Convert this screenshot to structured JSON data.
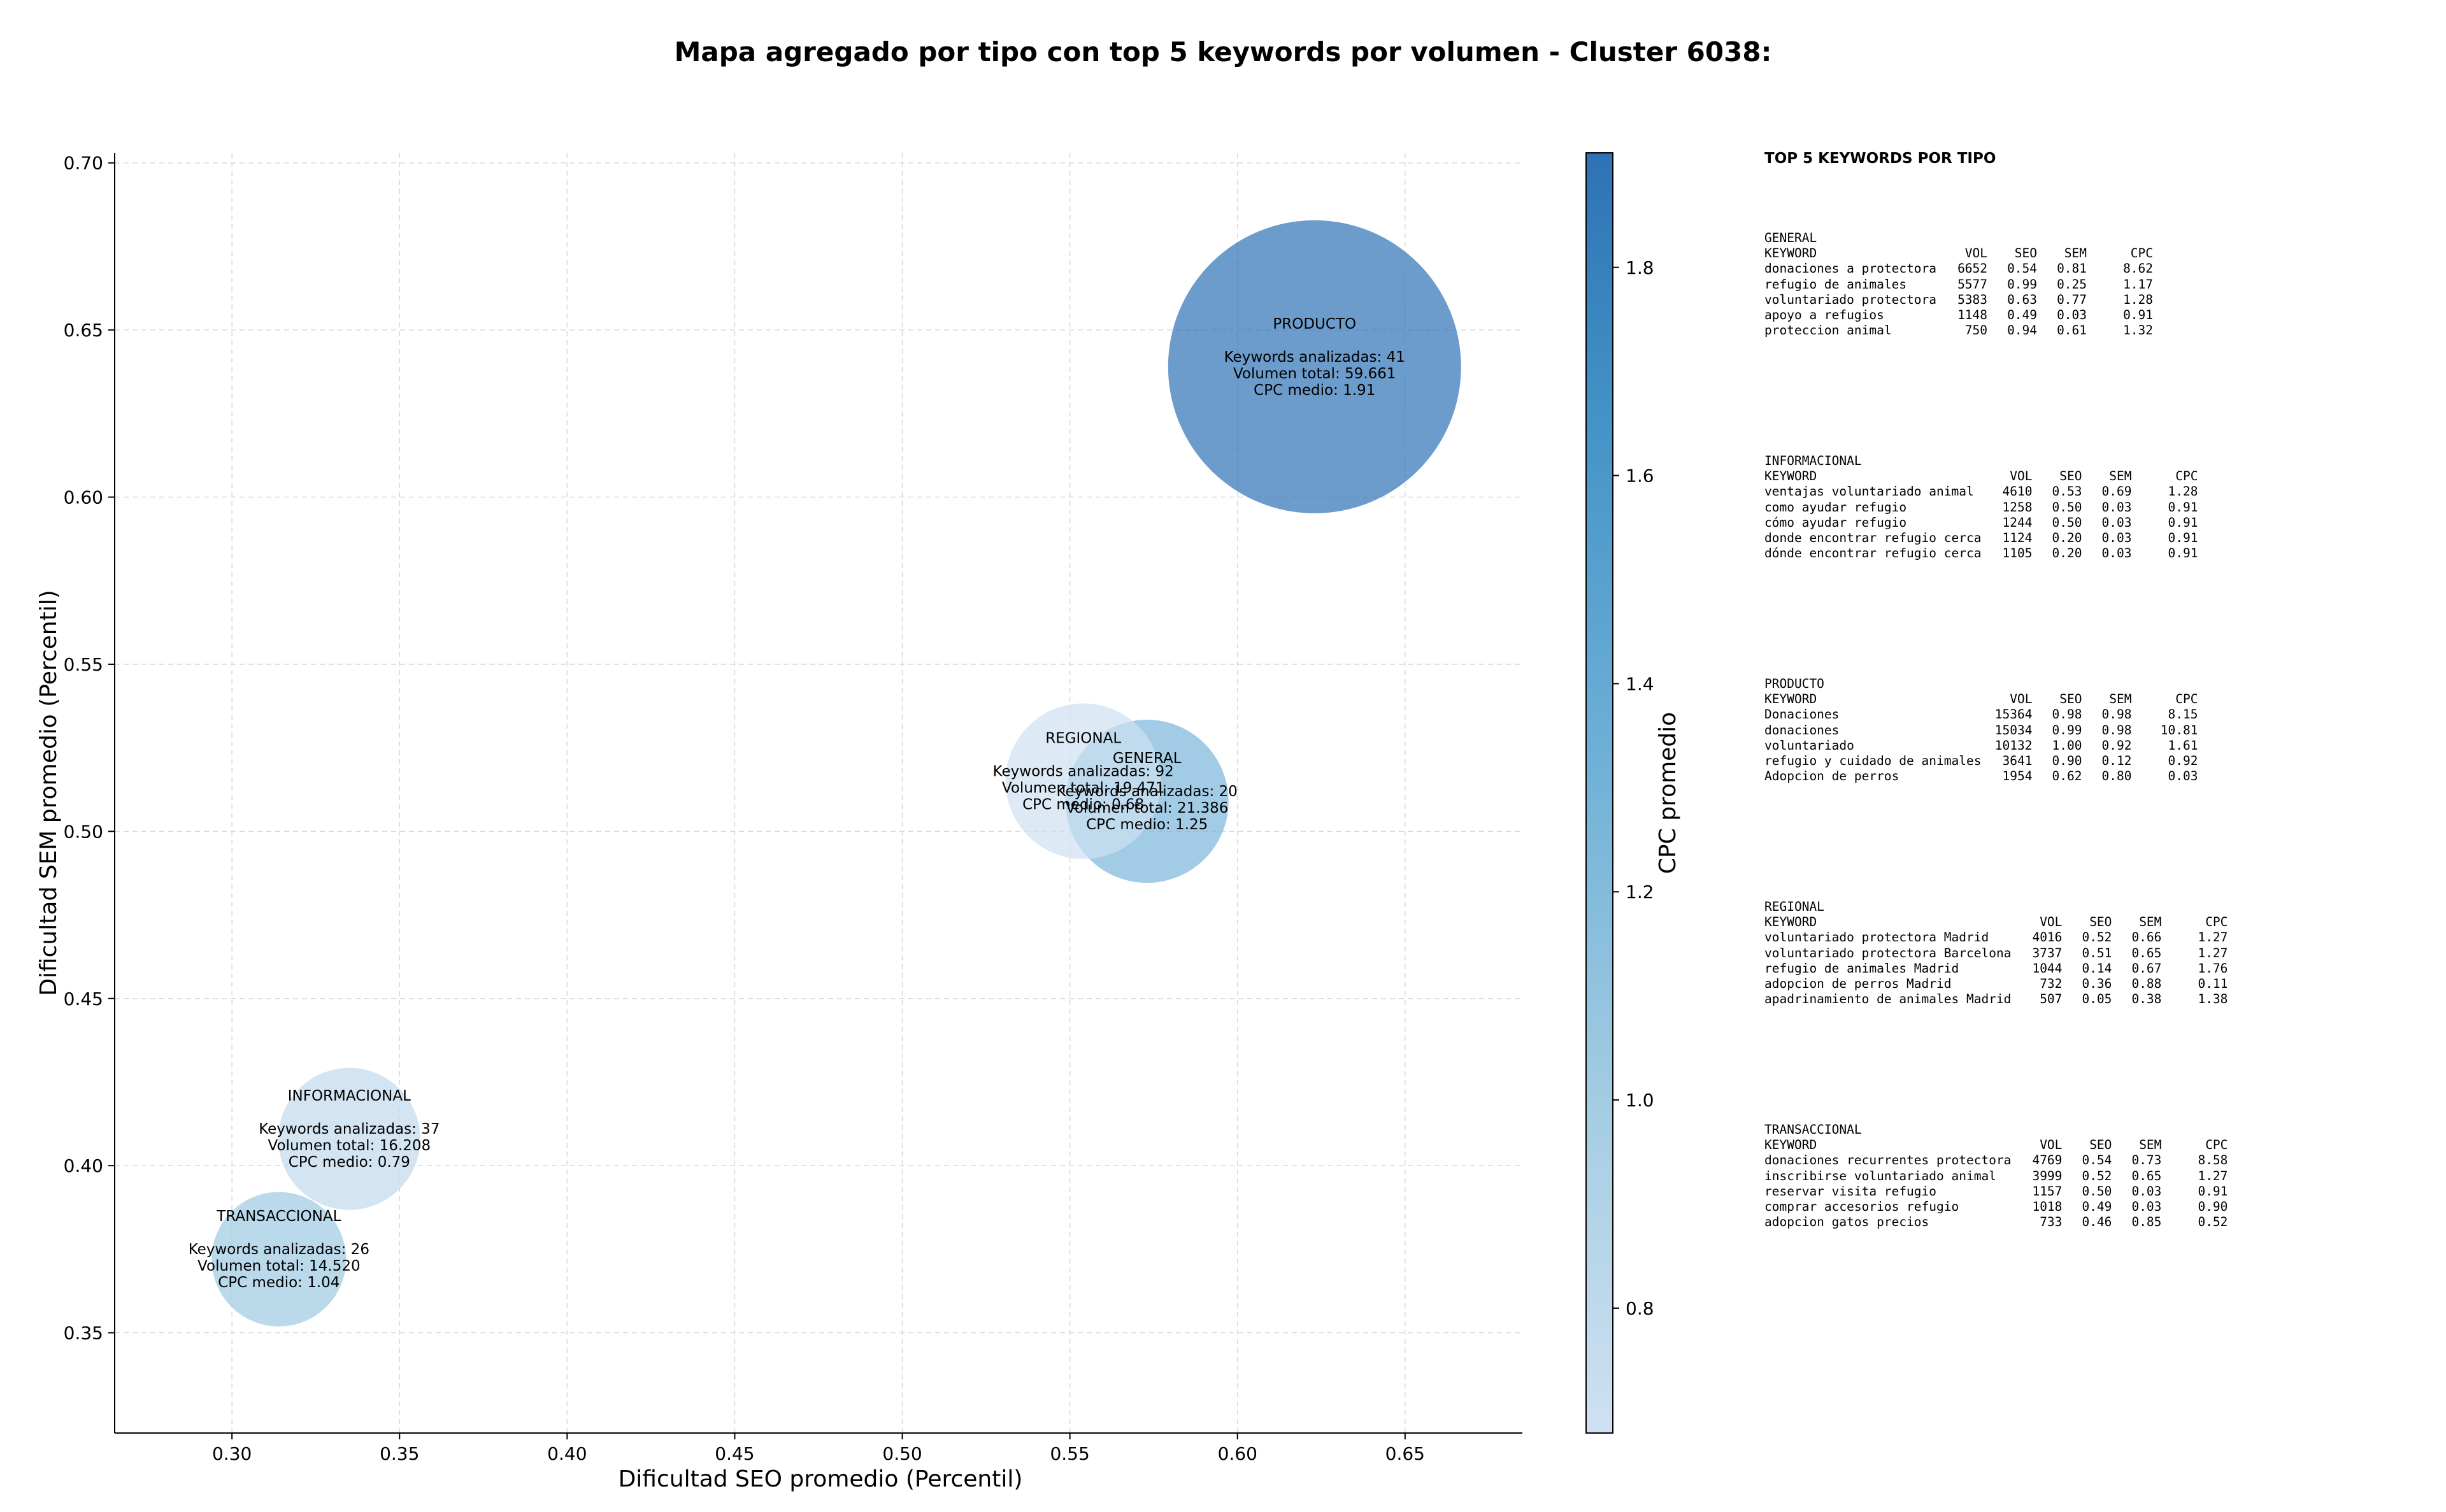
{
  "chart_data": {
    "type": "scatter",
    "title": "Mapa agregado por tipo con top 5 keywords por volumen - Cluster 6038:",
    "xlabel": "Dificultad SEO promedio (Percentil)",
    "ylabel": "Dificultad SEM promedio (Percentil)",
    "xlim": [
      0.265,
      0.685
    ],
    "ylim": [
      0.32,
      0.703
    ],
    "xticks": [
      "0.30",
      "0.35",
      "0.40",
      "0.45",
      "0.50",
      "0.55",
      "0.60",
      "0.65"
    ],
    "yticks": [
      "0.35",
      "0.40",
      "0.45",
      "0.50",
      "0.55",
      "0.60",
      "0.65",
      "0.70"
    ],
    "grid": true,
    "colorbar": {
      "label": "CPC promedio",
      "range": [
        0.68,
        1.91
      ],
      "ticks": [
        "0.8",
        "1.0",
        "1.2",
        "1.4",
        "1.6",
        "1.8"
      ],
      "colors": [
        "#cfe1f2",
        "#a5cde3",
        "#6aaed6",
        "#4292c6",
        "#2d72b5"
      ]
    },
    "bubbles": [
      {
        "name": "GENERAL",
        "x": 0.573,
        "y": 0.509,
        "cpc": 1.25,
        "keywords_label": "Keywords analizadas: 20",
        "volume_label": "Volumen total: 21.386",
        "cpc_label": "CPC medio: 1.25",
        "volume": 21386
      },
      {
        "name": "INFORMACIONAL",
        "x": 0.335,
        "y": 0.408,
        "cpc": 0.79,
        "keywords_label": "Keywords analizadas: 37",
        "volume_label": "Volumen total: 16.208",
        "cpc_label": "CPC medio: 0.79",
        "volume": 16208
      },
      {
        "name": "PRODUCTO",
        "x": 0.623,
        "y": 0.639,
        "cpc": 1.91,
        "keywords_label": "Keywords analizadas: 41",
        "volume_label": "Volumen total: 59.661",
        "cpc_label": "CPC medio: 1.91",
        "volume": 59661
      },
      {
        "name": "REGIONAL",
        "x": 0.554,
        "y": 0.515,
        "cpc": 0.68,
        "keywords_label": "Keywords analizadas: 92",
        "volume_label": "Volumen total: 19.471",
        "cpc_label": "CPC medio: 0.68",
        "volume": 19471
      },
      {
        "name": "TRANSACCIONAL",
        "x": 0.314,
        "y": 0.372,
        "cpc": 1.04,
        "keywords_label": "Keywords analizadas: 26",
        "volume_label": "Volumen total: 14.520",
        "cpc_label": "CPC medio: 1.04",
        "volume": 14520
      }
    ]
  },
  "tables": {
    "title": "TOP 5 KEYWORDS POR TIPO",
    "header": {
      "keyword": "KEYWORD",
      "vol": "VOL",
      "seo": "SEO",
      "sem": "SEM",
      "cpc": "CPC"
    },
    "groups": [
      {
        "name": "GENERAL",
        "rows": [
          [
            "donaciones a protectora",
            "6652",
            "0.54",
            "0.81",
            "8.62"
          ],
          [
            "refugio de animales",
            "5577",
            "0.99",
            "0.25",
            "1.17"
          ],
          [
            "voluntariado protectora",
            "5383",
            "0.63",
            "0.77",
            "1.28"
          ],
          [
            "apoyo a refugios",
            "1148",
            "0.49",
            "0.03",
            "0.91"
          ],
          [
            "proteccion animal",
            "750",
            "0.94",
            "0.61",
            "1.32"
          ]
        ]
      },
      {
        "name": "INFORMACIONAL",
        "rows": [
          [
            "ventajas voluntariado animal",
            "4610",
            "0.53",
            "0.69",
            "1.28"
          ],
          [
            "como ayudar refugio",
            "1258",
            "0.50",
            "0.03",
            "0.91"
          ],
          [
            "cómo ayudar refugio",
            "1244",
            "0.50",
            "0.03",
            "0.91"
          ],
          [
            "donde encontrar refugio cerca",
            "1124",
            "0.20",
            "0.03",
            "0.91"
          ],
          [
            "dónde encontrar refugio cerca",
            "1105",
            "0.20",
            "0.03",
            "0.91"
          ]
        ]
      },
      {
        "name": "PRODUCTO",
        "rows": [
          [
            "Donaciones",
            "15364",
            "0.98",
            "0.98",
            "8.15"
          ],
          [
            "donaciones",
            "15034",
            "0.99",
            "0.98",
            "10.81"
          ],
          [
            "voluntariado",
            "10132",
            "1.00",
            "0.92",
            "1.61"
          ],
          [
            "refugio y cuidado de animales",
            "3641",
            "0.90",
            "0.12",
            "0.92"
          ],
          [
            "Adopcion de perros",
            "1954",
            "0.62",
            "0.80",
            "0.03"
          ]
        ]
      },
      {
        "name": "REGIONAL",
        "rows": [
          [
            "voluntariado protectora Madrid",
            "4016",
            "0.52",
            "0.66",
            "1.27"
          ],
          [
            "voluntariado protectora Barcelona",
            "3737",
            "0.51",
            "0.65",
            "1.27"
          ],
          [
            "refugio de animales Madrid",
            "1044",
            "0.14",
            "0.67",
            "1.76"
          ],
          [
            "adopcion de perros Madrid",
            "732",
            "0.36",
            "0.88",
            "0.11"
          ],
          [
            "apadrinamiento de animales Madrid",
            "507",
            "0.05",
            "0.38",
            "1.38"
          ]
        ]
      },
      {
        "name": "TRANSACCIONAL",
        "rows": [
          [
            "donaciones recurrentes protectora",
            "4769",
            "0.54",
            "0.73",
            "8.58"
          ],
          [
            "inscribirse voluntariado animal",
            "3999",
            "0.52",
            "0.65",
            "1.27"
          ],
          [
            "reservar visita refugio",
            "1157",
            "0.50",
            "0.03",
            "0.91"
          ],
          [
            "comprar accesorios refugio",
            "1018",
            "0.49",
            "0.03",
            "0.90"
          ],
          [
            "adopcion gatos precios",
            "733",
            "0.46",
            "0.85",
            "0.52"
          ]
        ]
      }
    ]
  }
}
